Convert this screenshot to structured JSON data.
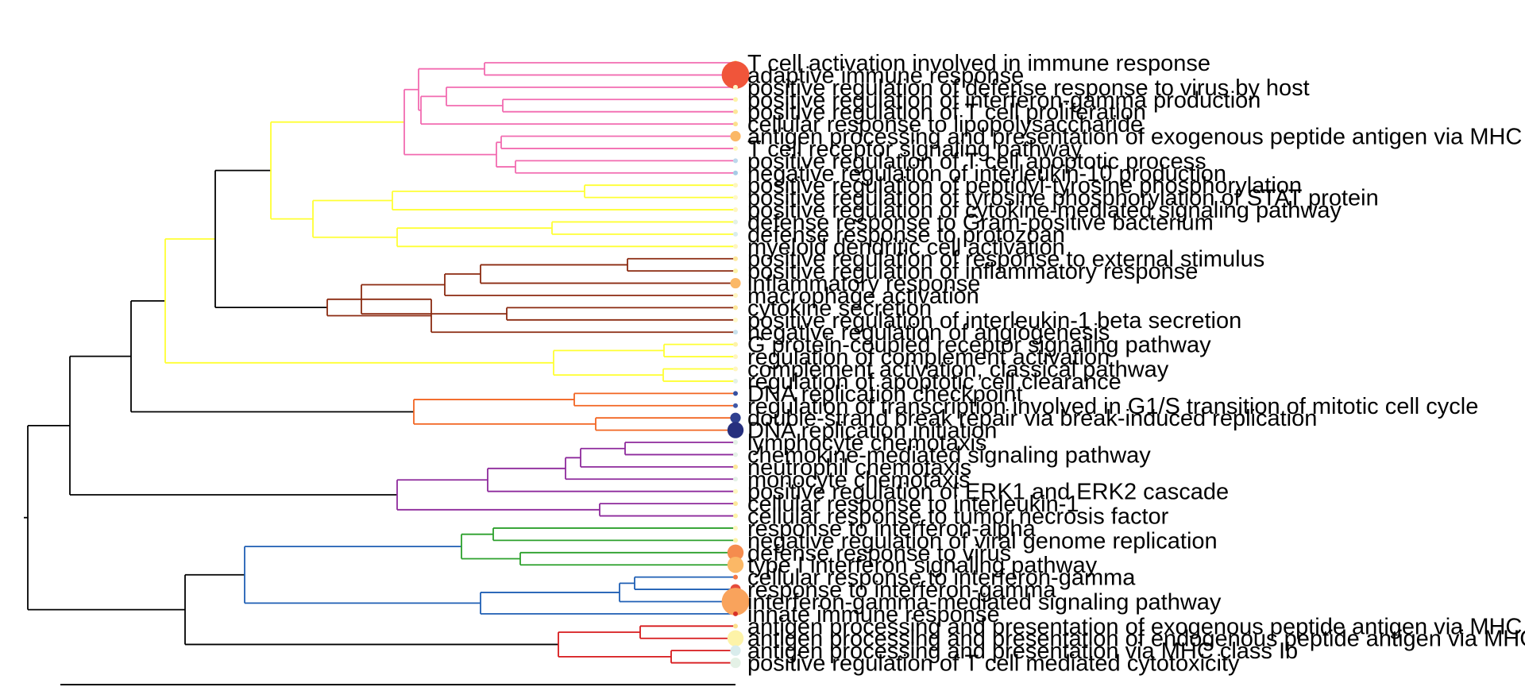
{
  "chart_data": {
    "type": "dendrogram",
    "description": "Hierarchical clustering tree of enriched GO terms with dot size/colour by enrichment",
    "leaves": [
      {
        "label": "T cell activation involved in immune response",
        "size": 1,
        "color": "#fdf1a0"
      },
      {
        "label": "adaptive immune response",
        "size": 5,
        "color": "#f0553a"
      },
      {
        "label": "positive regulation of defense response to virus by host",
        "size": 1,
        "color": "#fdf8c4"
      },
      {
        "label": "positive regulation of interferon-gamma production",
        "size": 1,
        "color": "#fdf3a8"
      },
      {
        "label": "positive regulation of T cell proliferation",
        "size": 1,
        "color": "#fde79a"
      },
      {
        "label": "cellular response to lipopolysaccharide",
        "size": 1,
        "color": "#fce08c"
      },
      {
        "label": "antigen processing and presentation of exogenous peptide antigen via MHC class II",
        "size": 2,
        "color": "#fbb866"
      },
      {
        "label": "T cell receptor signaling pathway",
        "size": 1,
        "color": "#fff6c0"
      },
      {
        "label": "positive regulation of T cell apoptotic process",
        "size": 1,
        "color": "#bcd8ec"
      },
      {
        "label": "negative regulation of interleukin-10 production",
        "size": 1,
        "color": "#a6cbe5"
      },
      {
        "label": "positive regulation of peptidyl-tyrosine phosphorylation",
        "size": 1,
        "color": "#fdf6be"
      },
      {
        "label": "positive regulation of tyrosine phosphorylation of STAT protein",
        "size": 1,
        "color": "#fff8c8"
      },
      {
        "label": "positive regulation of cytokine-mediated signaling pathway",
        "size": 1,
        "color": "#fff6c0"
      },
      {
        "label": "defense response to Gram-positive bacterium",
        "size": 1,
        "color": "#e4f1e6"
      },
      {
        "label": "defense response to protozoan",
        "size": 1,
        "color": "#d9ecec"
      },
      {
        "label": "myeloid dendritic cell activation",
        "size": 1,
        "color": "#fff6c0"
      },
      {
        "label": "positive regulation of response to external stimulus",
        "size": 1,
        "color": "#fde79a"
      },
      {
        "label": "positive regulation of inflammatory response",
        "size": 1,
        "color": "#fdf3a8"
      },
      {
        "label": "inflammatory response",
        "size": 2,
        "color": "#fbb866"
      },
      {
        "label": "macrophage activation",
        "size": 1,
        "color": "#fff6c0"
      },
      {
        "label": "cytokine secretion",
        "size": 1,
        "color": "#fde79a"
      },
      {
        "label": "positive regulation of interleukin-1 beta secretion",
        "size": 1,
        "color": "#fff8c8"
      },
      {
        "label": "negative regulation of angiogenesis",
        "size": 1,
        "color": "#c9e1ec"
      },
      {
        "label": "G protein-coupled receptor signaling pathway",
        "size": 1,
        "color": "#fdf3a8"
      },
      {
        "label": "regulation of complement activation",
        "size": 1,
        "color": "#fff6c0"
      },
      {
        "label": "complement activation, classical pathway",
        "size": 1,
        "color": "#fff6c0"
      },
      {
        "label": "regulation of apoptotic cell clearance",
        "size": 1,
        "color": "#e4f1e6"
      },
      {
        "label": "DNA replication checkpoint",
        "size": 1,
        "color": "#3650a0"
      },
      {
        "label": "regulation of transcription involved in G1/S transition of mitotic cell cycle",
        "size": 1,
        "color": "#3e58a8"
      },
      {
        "label": "double-strand break repair via break-induced replication",
        "size": 2,
        "color": "#2e3f8f"
      },
      {
        "label": "DNA replication initiation",
        "size": 3,
        "color": "#262f7e"
      },
      {
        "label": "lymphocyte chemotaxis",
        "size": 1,
        "color": "#e4f1e6"
      },
      {
        "label": "chemokine-mediated signaling pathway",
        "size": 1,
        "color": "#e4f1e6"
      },
      {
        "label": "neutrophil chemotaxis",
        "size": 1,
        "color": "#fde79a"
      },
      {
        "label": "monocyte chemotaxis",
        "size": 1,
        "color": "#e4f1e6"
      },
      {
        "label": "positive regulation of ERK1 and ERK2 cascade",
        "size": 1,
        "color": "#fff6c0"
      },
      {
        "label": "cellular response to interleukin-1",
        "size": 1,
        "color": "#fde79a"
      },
      {
        "label": "cellular response to tumor necrosis factor",
        "size": 1,
        "color": "#fdf3a8"
      },
      {
        "label": "response to interferon-alpha",
        "size": 1,
        "color": "#fff6c0"
      },
      {
        "label": "negative regulation of viral genome replication",
        "size": 1,
        "color": "#fdf3a8"
      },
      {
        "label": "defense response to virus",
        "size": 3,
        "color": "#f58c4e"
      },
      {
        "label": "type I interferon signaling pathway",
        "size": 3,
        "color": "#fbb866"
      },
      {
        "label": "cellular response to interferon-gamma",
        "size": 1,
        "color": "#f47745"
      },
      {
        "label": "response to interferon-gamma",
        "size": 2,
        "color": "#e54b3a"
      },
      {
        "label": "interferon-gamma-mediated signaling pathway",
        "size": 5,
        "color": "#f9a35c"
      },
      {
        "label": "innate immune response",
        "size": 1,
        "color": "#d73027"
      },
      {
        "label": "antigen processing and presentation of exogenous peptide antigen via MHC class I, TAP-dependent",
        "size": 1,
        "color": "#fce08c"
      },
      {
        "label": "antigen processing and presentation of endogenous peptide antigen via MHC class I",
        "size": 3,
        "color": "#fdf3a8"
      },
      {
        "label": "antigen processing and presentation via MHC class Ib",
        "size": 2,
        "color": "#d9ecec"
      },
      {
        "label": "positive regulation of T cell mediated cytotoxicity",
        "size": 2,
        "color": "#e4f1e6"
      }
    ],
    "clusters": [
      {
        "color": "#f26bb0",
        "leaf_range": [
          0,
          9
        ]
      },
      {
        "color": "#ffff33",
        "leaf_range": [
          10,
          15
        ]
      },
      {
        "color": "#8b2a10",
        "leaf_range": [
          16,
          22
        ]
      },
      {
        "color": "#ffff33",
        "leaf_range": [
          23,
          26
        ]
      },
      {
        "color": "#f26522",
        "leaf_range": [
          27,
          30
        ]
      },
      {
        "color": "#8e2a9c",
        "leaf_range": [
          31,
          37
        ]
      },
      {
        "color": "#2ca02c",
        "leaf_range": [
          38,
          41
        ]
      },
      {
        "color": "#1f5fb4",
        "leaf_range": [
          42,
          45
        ]
      },
      {
        "color": "#d7191c",
        "leaf_range": [
          46,
          49
        ]
      }
    ],
    "trunk_color": "#000000"
  }
}
